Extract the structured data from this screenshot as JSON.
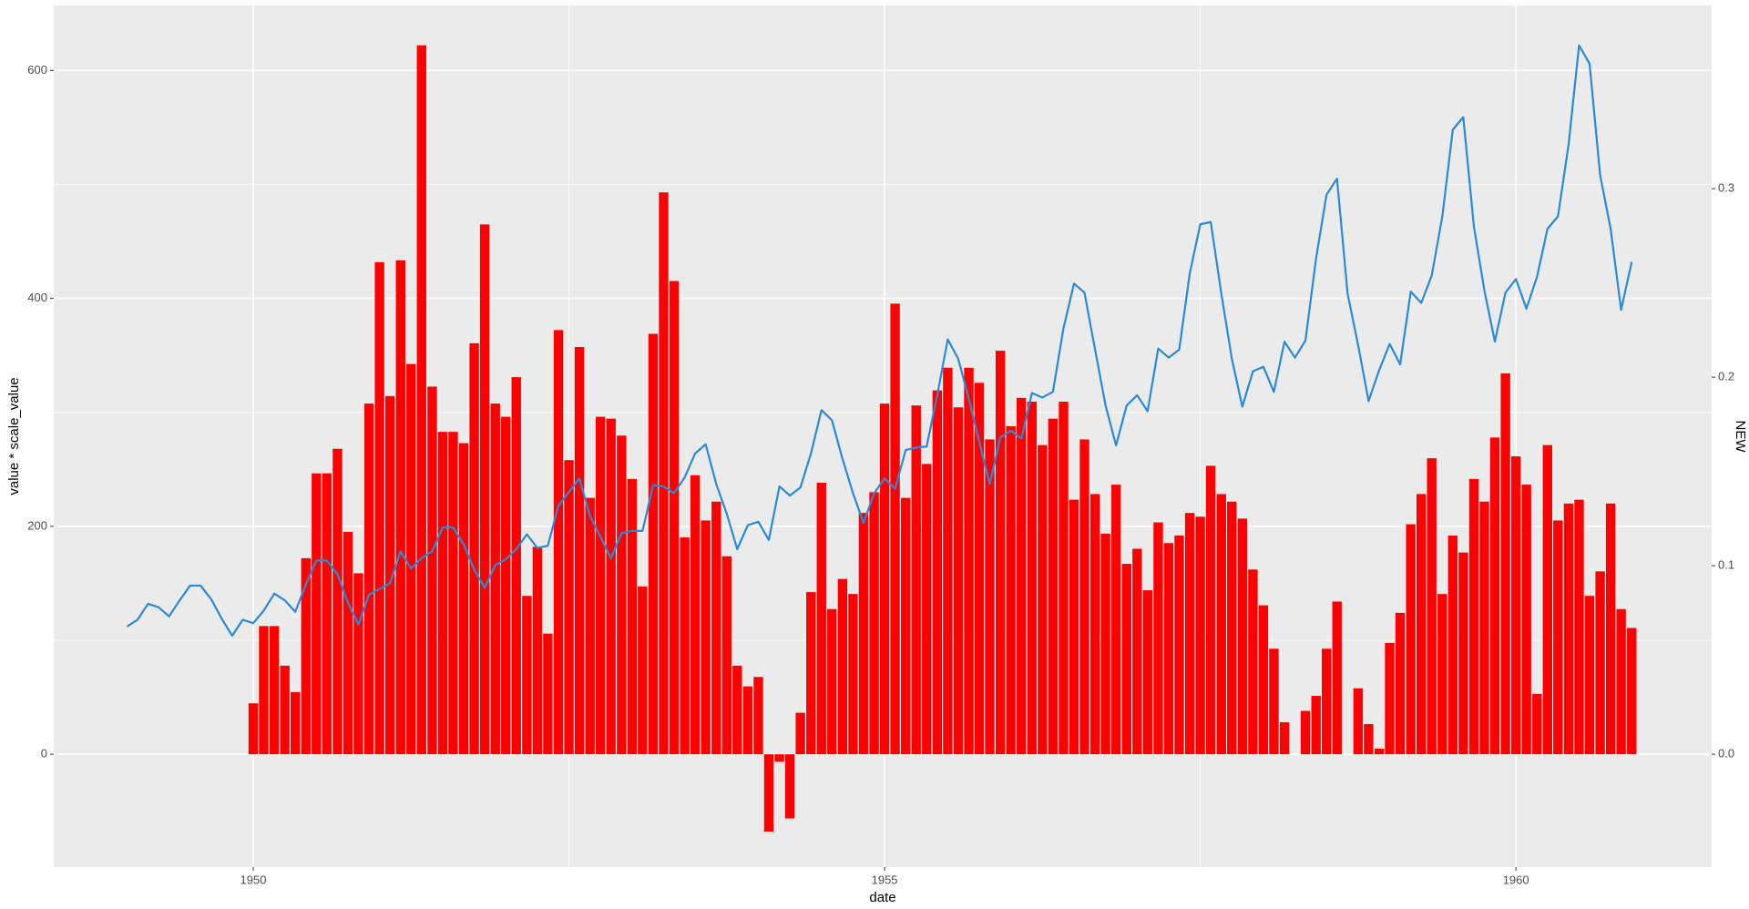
{
  "chart_data": {
    "type": "combo",
    "xlabel": "date",
    "ylabel": "value * scale_value",
    "y2label": "NEW",
    "xlim": [
      1948.42,
      1961.55
    ],
    "xticks": [
      1950,
      1955,
      1960
    ],
    "ylim": [
      -99,
      657
    ],
    "yticks": [
      0,
      200,
      400,
      600
    ],
    "y2lim": [
      -0.05984,
      0.39715
    ],
    "y2ticks": [
      {
        "value": 0,
        "label": "0.0"
      },
      {
        "value": 0.1,
        "label": "0.1"
      },
      {
        "value": 0.2,
        "label": "0.2"
      },
      {
        "value": 0.3,
        "label": "0.3"
      }
    ],
    "grid": true,
    "minor_grid": true,
    "series": [
      {
        "type": "bar",
        "axis": "y2",
        "color": "#ff0000",
        "x": [
          1950,
          1950.083,
          1950.167,
          1950.25,
          1950.333,
          1950.417,
          1950.5,
          1950.583,
          1950.667,
          1950.75,
          1950.833,
          1950.917,
          1951,
          1951.083,
          1951.167,
          1951.25,
          1951.333,
          1951.417,
          1951.5,
          1951.583,
          1951.667,
          1951.75,
          1951.833,
          1951.917,
          1952,
          1952.083,
          1952.167,
          1952.25,
          1952.333,
          1952.417,
          1952.5,
          1952.583,
          1952.667,
          1952.75,
          1952.833,
          1952.917,
          1953,
          1953.083,
          1953.167,
          1953.25,
          1953.333,
          1953.417,
          1953.5,
          1953.583,
          1953.667,
          1953.75,
          1953.833,
          1953.917,
          1954,
          1954.083,
          1954.167,
          1954.25,
          1954.333,
          1954.417,
          1954.5,
          1954.583,
          1954.667,
          1954.75,
          1954.833,
          1954.917,
          1955,
          1955.083,
          1955.167,
          1955.25,
          1955.333,
          1955.417,
          1955.5,
          1955.583,
          1955.667,
          1955.75,
          1955.833,
          1955.917,
          1956,
          1956.083,
          1956.167,
          1956.25,
          1956.333,
          1956.417,
          1956.5,
          1956.583,
          1956.667,
          1956.75,
          1956.833,
          1956.917,
          1957,
          1957.083,
          1957.167,
          1957.25,
          1957.333,
          1957.417,
          1957.5,
          1957.583,
          1957.667,
          1957.75,
          1957.833,
          1957.917,
          1958,
          1958.083,
          1958.167,
          1958.25,
          1958.333,
          1958.417,
          1958.5,
          1958.583,
          1958.667,
          1958.75,
          1958.833,
          1958.917,
          1959,
          1959.083,
          1959.167,
          1959.25,
          1959.333,
          1959.417,
          1959.5,
          1959.583,
          1959.667,
          1959.75,
          1959.833,
          1959.917,
          1960,
          1960.083,
          1960.167,
          1960.25,
          1960.333,
          1960.417,
          1960.5,
          1960.583,
          1960.667,
          1960.75,
          1960.833,
          1960.917
        ],
        "values": [
          0.027,
          0.068,
          0.068,
          0.047,
          0.033,
          0.104,
          0.149,
          0.149,
          0.162,
          0.118,
          0.096,
          0.186,
          0.261,
          0.19,
          0.262,
          0.207,
          0.376,
          0.195,
          0.171,
          0.171,
          0.165,
          0.218,
          0.281,
          0.186,
          0.179,
          0.2,
          0.084,
          0.11,
          0.064,
          0.225,
          0.156,
          0.216,
          0.136,
          0.179,
          0.178,
          0.169,
          0.146,
          0.089,
          0.223,
          0.298,
          0.251,
          0.115,
          0.148,
          0.124,
          0.134,
          0.105,
          0.047,
          0.036,
          0.041,
          -0.041,
          -0.004,
          -0.034,
          0.022,
          0.086,
          0.144,
          0.077,
          0.093,
          0.085,
          0.128,
          0.139,
          0.186,
          0.239,
          0.136,
          0.185,
          0.154,
          0.193,
          0.205,
          0.184,
          0.205,
          0.197,
          0.167,
          0.214,
          0.174,
          0.189,
          0.187,
          0.164,
          0.178,
          0.187,
          0.135,
          0.167,
          0.138,
          0.117,
          0.143,
          0.101,
          0.109,
          0.087,
          0.123,
          0.112,
          0.116,
          0.128,
          0.126,
          0.153,
          0.138,
          0.134,
          0.125,
          0.098,
          0.079,
          0.056,
          0.017,
          0.0,
          0.023,
          0.031,
          0.056,
          0.081,
          0.0,
          0.035,
          0.016,
          0.003,
          0.059,
          0.075,
          0.122,
          0.138,
          0.157,
          0.085,
          0.116,
          0.107,
          0.146,
          0.134,
          0.168,
          0.202,
          0.158,
          0.143,
          0.032,
          0.164,
          0.124,
          0.133,
          0.135,
          0.084,
          0.097,
          0.133,
          0.077,
          0.067
        ]
      },
      {
        "type": "line",
        "axis": "y",
        "color": "#2b8ad8",
        "x": [
          1949,
          1949.083,
          1949.167,
          1949.25,
          1949.333,
          1949.417,
          1949.5,
          1949.583,
          1949.667,
          1949.75,
          1949.833,
          1949.917,
          1950,
          1950.083,
          1950.167,
          1950.25,
          1950.333,
          1950.417,
          1950.5,
          1950.583,
          1950.667,
          1950.75,
          1950.833,
          1950.917,
          1951,
          1951.083,
          1951.167,
          1951.25,
          1951.333,
          1951.417,
          1951.5,
          1951.583,
          1951.667,
          1951.75,
          1951.833,
          1951.917,
          1952,
          1952.083,
          1952.167,
          1952.25,
          1952.333,
          1952.417,
          1952.5,
          1952.583,
          1952.667,
          1952.75,
          1952.833,
          1952.917,
          1953,
          1953.083,
          1953.167,
          1953.25,
          1953.333,
          1953.417,
          1953.5,
          1953.583,
          1953.667,
          1953.75,
          1953.833,
          1953.917,
          1954,
          1954.083,
          1954.167,
          1954.25,
          1954.333,
          1954.417,
          1954.5,
          1954.583,
          1954.667,
          1954.75,
          1954.833,
          1954.917,
          1955,
          1955.083,
          1955.167,
          1955.25,
          1955.333,
          1955.417,
          1955.5,
          1955.583,
          1955.667,
          1955.75,
          1955.833,
          1955.917,
          1956,
          1956.083,
          1956.167,
          1956.25,
          1956.333,
          1956.417,
          1956.5,
          1956.583,
          1956.667,
          1956.75,
          1956.833,
          1956.917,
          1957,
          1957.083,
          1957.167,
          1957.25,
          1957.333,
          1957.417,
          1957.5,
          1957.583,
          1957.667,
          1957.75,
          1957.833,
          1957.917,
          1958,
          1958.083,
          1958.167,
          1958.25,
          1958.333,
          1958.417,
          1958.5,
          1958.583,
          1958.667,
          1958.75,
          1958.833,
          1958.917,
          1959,
          1959.083,
          1959.167,
          1959.25,
          1959.333,
          1959.417,
          1959.5,
          1959.583,
          1959.667,
          1959.75,
          1959.833,
          1959.917,
          1960,
          1960.083,
          1960.167,
          1960.25,
          1960.333,
          1960.417,
          1960.5,
          1960.583,
          1960.667,
          1960.75,
          1960.833,
          1960.917
        ],
        "values": [
          112,
          118,
          132,
          129,
          121,
          135,
          148,
          148,
          136,
          119,
          104,
          118,
          115,
          126,
          141,
          135,
          125,
          149,
          170,
          170,
          158,
          133,
          114,
          140,
          145,
          150,
          178,
          163,
          172,
          178,
          199,
          199,
          184,
          162,
          146,
          166,
          171,
          180,
          193,
          181,
          183,
          218,
          230,
          242,
          209,
          191,
          172,
          194,
          196,
          196,
          236,
          235,
          229,
          243,
          264,
          272,
          237,
          211,
          180,
          201,
          204,
          188,
          235,
          227,
          234,
          264,
          302,
          293,
          259,
          229,
          203,
          229,
          242,
          233,
          267,
          269,
          270,
          315,
          364,
          347,
          312,
          274,
          237,
          278,
          284,
          277,
          317,
          313,
          318,
          374,
          413,
          405,
          355,
          306,
          271,
          306,
          315,
          301,
          356,
          348,
          355,
          422,
          465,
          467,
          404,
          347,
          305,
          336,
          340,
          318,
          362,
          348,
          363,
          435,
          491,
          505,
          404,
          359,
          310,
          337,
          360,
          342,
          406,
          396,
          420,
          472,
          548,
          559,
          463,
          407,
          362,
          405,
          417,
          391,
          419,
          461,
          472,
          535,
          622,
          606,
          508,
          461,
          390,
          432
        ]
      }
    ]
  }
}
